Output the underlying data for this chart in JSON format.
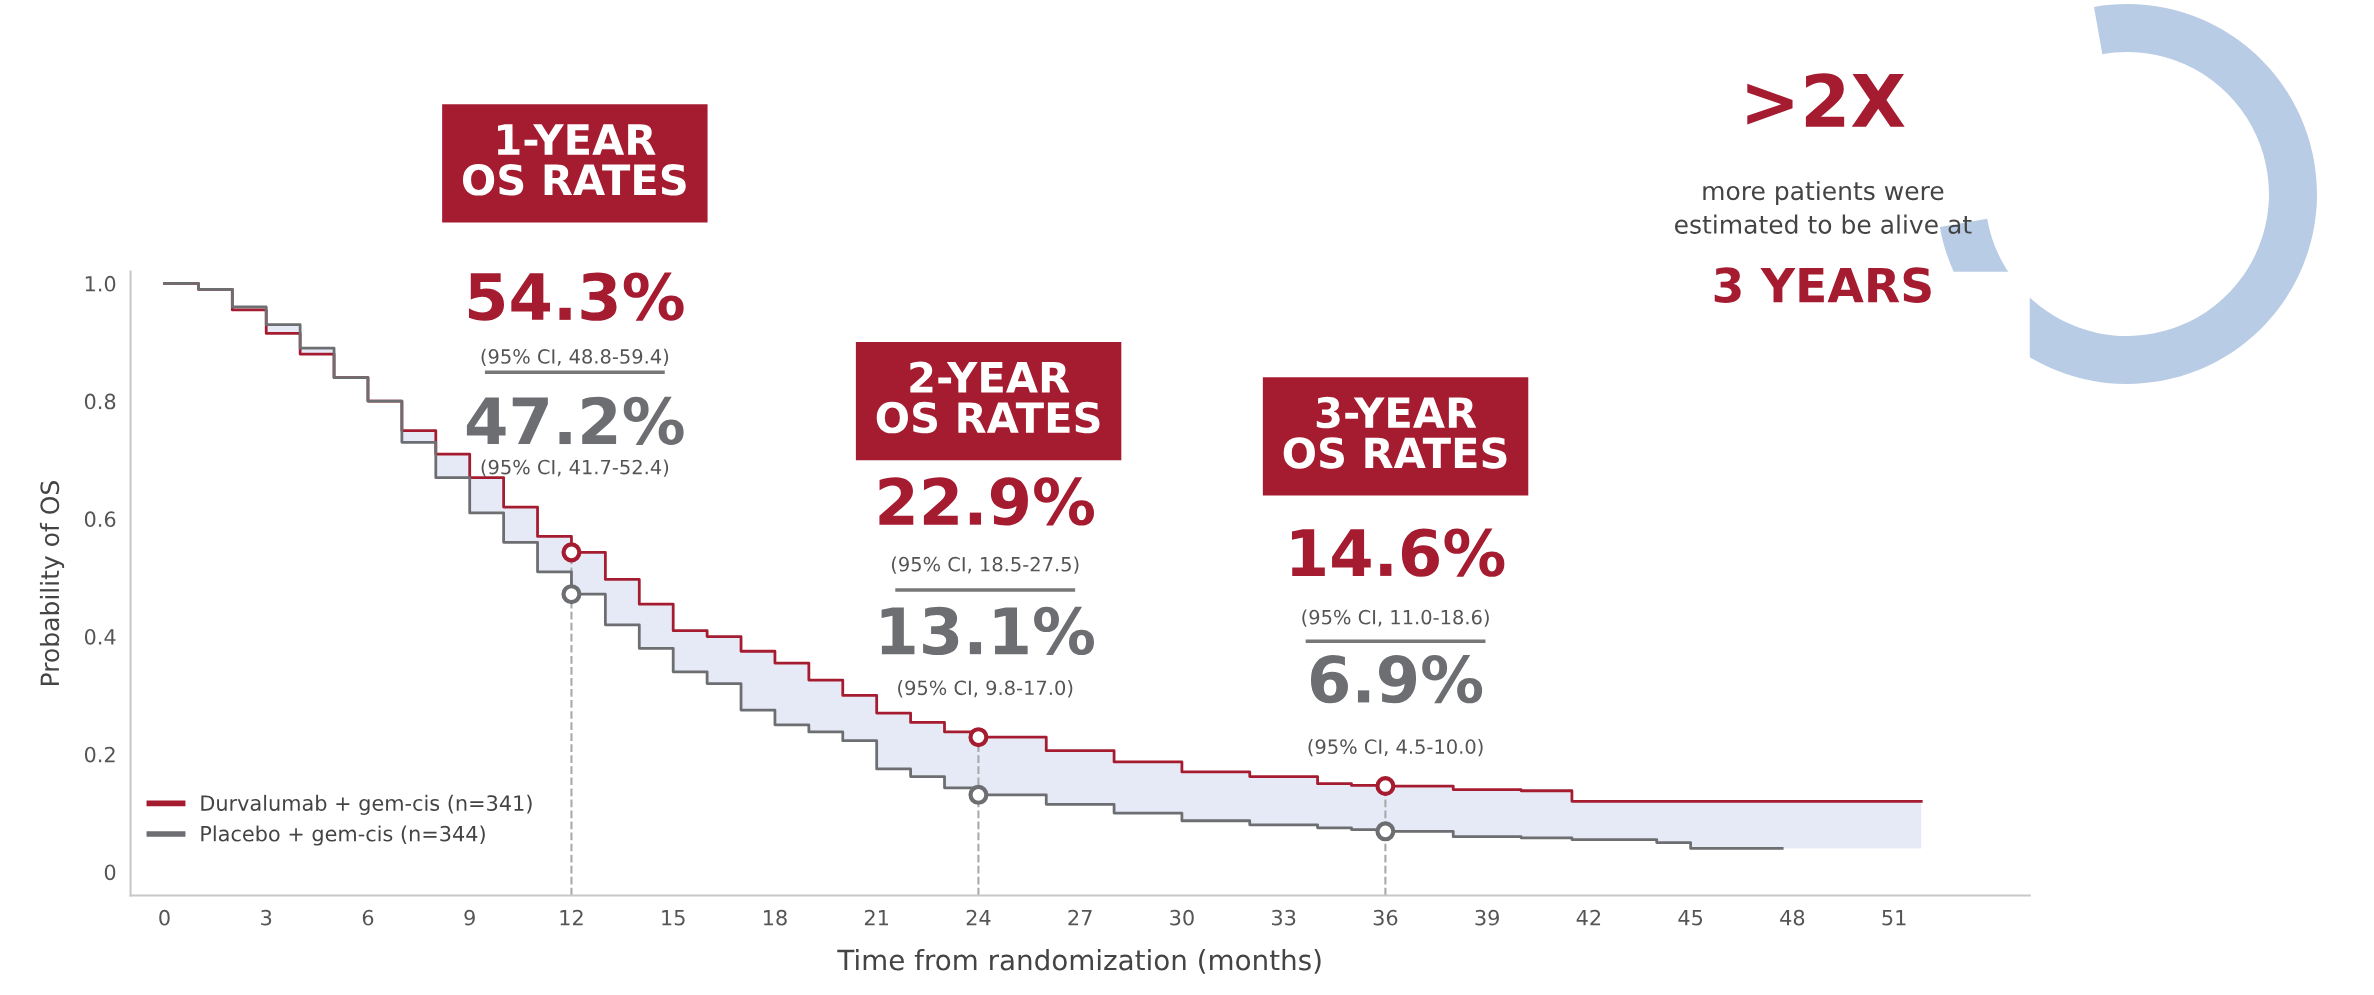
{
  "chart_data": {
    "type": "step",
    "xlabel": "Time from randomization (months)",
    "ylabel": "Probability of OS",
    "x": [
      0,
      1,
      2,
      3,
      4,
      5,
      6,
      7,
      8,
      9,
      10,
      11,
      12,
      13,
      14,
      15,
      16,
      17,
      18,
      19,
      20,
      21,
      22,
      23,
      24,
      26,
      28,
      30,
      32,
      34,
      35,
      36,
      38,
      40,
      41.5,
      44,
      45,
      47.7,
      51.8
    ],
    "series": [
      {
        "name": "Durvalumab + gem-cis (n=341)",
        "color": "#a51c30",
        "values": [
          1.0,
          0.99,
          0.955,
          0.915,
          0.88,
          0.84,
          0.8,
          0.75,
          0.71,
          0.67,
          0.62,
          0.57,
          0.543,
          0.497,
          0.455,
          0.41,
          0.4,
          0.375,
          0.355,
          0.326,
          0.3,
          0.27,
          0.254,
          0.238,
          0.229,
          0.206,
          0.187,
          0.17,
          0.162,
          0.15,
          0.147,
          0.146,
          0.14,
          0.138,
          0.12,
          0.12,
          0.12,
          0.12,
          0.12
        ],
        "lower": [
          1.0,
          0.99,
          0.96,
          0.93,
          0.89,
          0.84,
          0.8,
          0.73,
          0.67,
          0.61,
          0.56,
          0.51,
          0.472,
          0.42,
          0.38,
          0.34,
          0.32,
          0.275,
          0.25,
          0.238,
          0.223,
          0.175,
          0.162,
          0.143,
          0.131,
          0.115,
          0.1,
          0.087,
          0.08,
          0.075,
          0.072,
          0.069,
          0.06,
          0.058,
          0.055,
          0.05,
          0.04,
          0.04,
          0.12
        ],
        "upper": [
          1.0,
          0.99,
          0.955,
          0.915,
          0.88,
          0.84,
          0.8,
          0.75,
          0.71,
          0.67,
          0.62,
          0.57,
          0.543,
          0.497,
          0.455,
          0.41,
          0.4,
          0.375,
          0.355,
          0.326,
          0.3,
          0.27,
          0.254,
          0.238,
          0.229,
          0.206,
          0.187,
          0.17,
          0.162,
          0.15,
          0.147,
          0.146,
          0.14,
          0.138,
          0.12,
          0.12,
          0.12,
          0.12,
          0.12
        ]
      },
      {
        "name": "Placebo + gem-cis (n=344)",
        "color": "#6d6e71",
        "x": [
          0,
          1,
          2,
          3,
          4,
          5,
          6,
          7,
          8,
          9,
          10,
          11,
          12,
          13,
          14,
          15,
          16,
          17,
          18,
          19,
          20,
          21,
          22,
          23,
          24,
          26,
          28,
          30,
          32,
          34,
          35,
          36,
          38,
          40,
          41.5,
          44,
          45,
          47.7
        ],
        "values": [
          1.0,
          0.99,
          0.96,
          0.93,
          0.89,
          0.84,
          0.8,
          0.73,
          0.67,
          0.61,
          0.56,
          0.51,
          0.472,
          0.42,
          0.38,
          0.34,
          0.32,
          0.275,
          0.25,
          0.238,
          0.223,
          0.175,
          0.162,
          0.143,
          0.131,
          0.115,
          0.1,
          0.087,
          0.08,
          0.075,
          0.072,
          0.069,
          0.06,
          0.058,
          0.055,
          0.05,
          0.04,
          0.04
        ]
      },
      {
        "type": "scatter",
        "color": "#a51c30",
        "marker": "circle",
        "x": [
          12,
          24,
          36
        ],
        "values": [
          0.543,
          0.229,
          0.146
        ]
      },
      {
        "type": "scatter",
        "color": "#6d6e71",
        "marker": "circle",
        "x": [
          12,
          24,
          36
        ],
        "values": [
          0.472,
          0.131,
          0.069
        ]
      }
    ],
    "xlim": [
      -1,
      55
    ],
    "ylim": [
      -0.04,
      1.02
    ],
    "xticks": [
      0,
      3,
      6,
      9,
      12,
      15,
      18,
      21,
      24,
      27,
      30,
      33,
      36,
      39,
      42,
      45,
      48,
      51
    ],
    "yticks": [
      0,
      0.2,
      0.4,
      0.6,
      0.8,
      {
        "value": 1,
        "label": "1.0"
      }
    ],
    "ref_lines": [
      {
        "axis": "x",
        "value": 12,
        "color": "#a7a9ac",
        "line_style": "dashed"
      },
      {
        "axis": "x",
        "value": 24,
        "color": "#a7a9ac",
        "line_style": "dashed"
      },
      {
        "axis": "x",
        "value": 36,
        "color": "#a7a9ac",
        "line_style": "dashed"
      }
    ],
    "annotations": [
      "1-YEAR\nOS RATES",
      "54.3%",
      "(95% CI, 48.8-59.4)",
      "47.2%",
      "(95% CI, 41.7-52.4)",
      "2-YEAR\nOS RATES",
      "22.9%",
      "(95% CI, 18.5-27.5)",
      "13.1%",
      "(95% CI, 9.8-17.0)",
      "3-YEAR\nOS RATES",
      "14.6%",
      "(95% CI, 11.0-18.6)",
      "6.9%",
      "(95% CI, 4.5-10.0)",
      ">2X",
      "more patients were\nestimated to be alive at",
      "3 YEARS"
    ],
    "legend": "bottom left",
    "grid": false,
    "line_style": "solid",
    "marker": "none"
  }
}
